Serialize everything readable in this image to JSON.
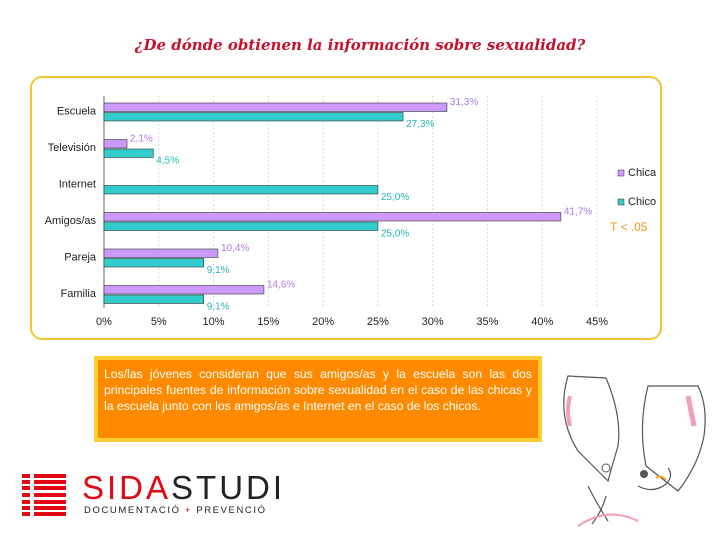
{
  "title": "¿De dónde obtienen la información sobre sexualidad?",
  "note": "T < .05",
  "chart_data": {
    "type": "bar",
    "orientation": "horizontal",
    "categories": [
      "Escuela",
      "Televisión",
      "Internet",
      "Amigos/as",
      "Pareja",
      "Familia"
    ],
    "series": [
      {
        "name": "Chica",
        "color": "#cc99ff",
        "values": [
          31.3,
          2.1,
          0,
          41.7,
          10.4,
          14.6
        ],
        "labels": [
          "31,3%",
          "2,1%",
          "",
          "41,7%",
          "10,4%",
          "14,6%"
        ]
      },
      {
        "name": "Chico",
        "color": "#33cccc",
        "values": [
          27.3,
          4.5,
          25.0,
          25.0,
          9.1,
          9.1
        ],
        "labels": [
          "27,3%",
          "4,5%",
          "25,0%",
          "25,0%",
          "9,1%",
          "9,1%"
        ]
      }
    ],
    "xlim": [
      0,
      45
    ],
    "xticks": [
      "0%",
      "5%",
      "10%",
      "15%",
      "20%",
      "25%",
      "30%",
      "35%",
      "40%",
      "45%"
    ],
    "grid": true,
    "legend_position": "right"
  },
  "text_box": "Los/las jóvenes consideran que sus amigos/as y la escuela son las dos principales fuentes de información sobre sexualidad en el caso de las chicas y la escuela junto con los amigos/as e Internet en el caso de los chicos.",
  "logo": {
    "brand_part1": "SIDA",
    "brand_part2": "STUDI",
    "tagline_part1": "DOCUMENTACIÓ ",
    "tagline_plus": "+",
    "tagline_part2": " PREVENCIÓ"
  }
}
